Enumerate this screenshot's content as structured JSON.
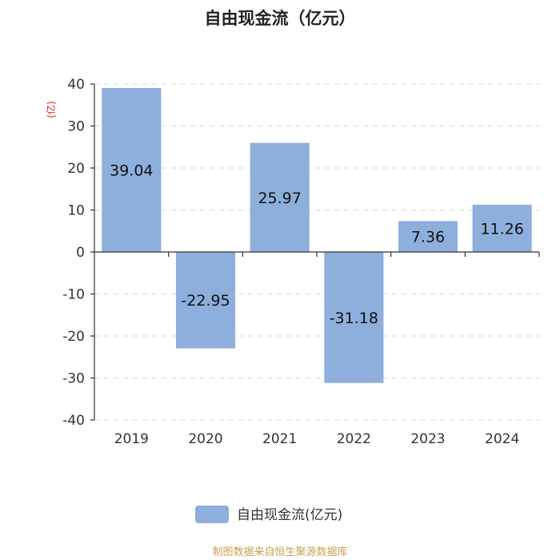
{
  "chart_data": {
    "type": "bar",
    "title": "自由现金流（亿元）",
    "unit_label": "(亿)",
    "categories": [
      "2019",
      "2020",
      "2021",
      "2022",
      "2023",
      "2024"
    ],
    "series": [
      {
        "name": "自由现金流(亿元)",
        "values": [
          39.04,
          -22.95,
          25.97,
          -31.18,
          7.36,
          11.26
        ],
        "labels": [
          "39.04",
          "-22.95",
          "25.97",
          "-31.18",
          "7.36",
          "11.26"
        ],
        "color": "#8eaedc"
      }
    ],
    "ylim": [
      -40,
      40
    ],
    "yticks": [
      40,
      30,
      20,
      10,
      0,
      -10,
      -20,
      -30,
      -40
    ],
    "grid": true,
    "legend_position": "bottom-center",
    "xlabel": "",
    "ylabel": ""
  },
  "source": "制图数据来自恒生聚源数据库",
  "colors": {
    "bar": "#8eaedc",
    "unit": "#e0201e",
    "source": "#c8a050"
  }
}
